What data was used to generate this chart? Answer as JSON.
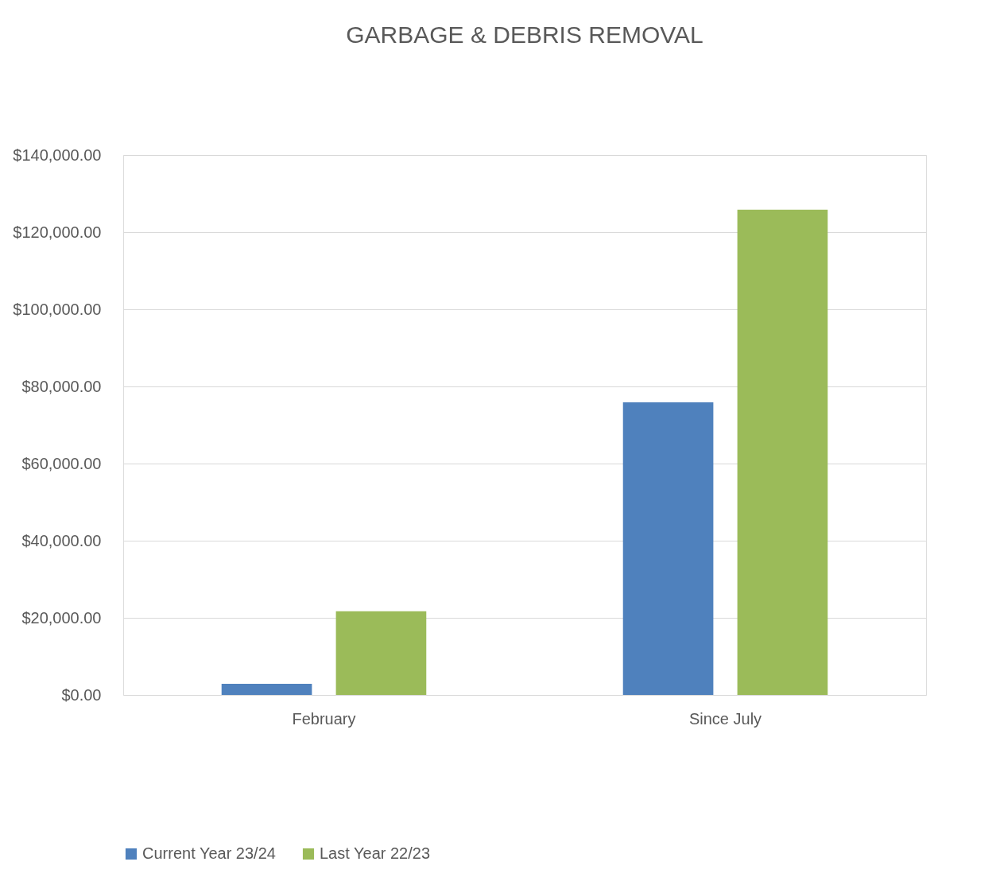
{
  "chart_data": {
    "type": "bar",
    "title": "GARBAGE & DEBRIS REMOVAL",
    "categories": [
      "February",
      "Since July"
    ],
    "series": [
      {
        "name": "Current Year 23/24",
        "color": "#4f81bd",
        "values": [
          2900,
          75900
        ]
      },
      {
        "name": "Last Year 22/23",
        "color": "#9bbb59",
        "values": [
          21700,
          125800
        ]
      }
    ],
    "ylim": [
      0,
      140000
    ],
    "yticks": [
      {
        "value": 0,
        "label": "$0.00"
      },
      {
        "value": 20000,
        "label": "$20,000.00"
      },
      {
        "value": 40000,
        "label": "$40,000.00"
      },
      {
        "value": 60000,
        "label": "$60,000.00"
      },
      {
        "value": 80000,
        "label": "$80,000.00"
      },
      {
        "value": 100000,
        "label": "$100,000.00"
      },
      {
        "value": 120000,
        "label": "$120,000.00"
      },
      {
        "value": 140000,
        "label": "$140,000.00"
      }
    ],
    "grid": "y",
    "legend": "bottom"
  }
}
